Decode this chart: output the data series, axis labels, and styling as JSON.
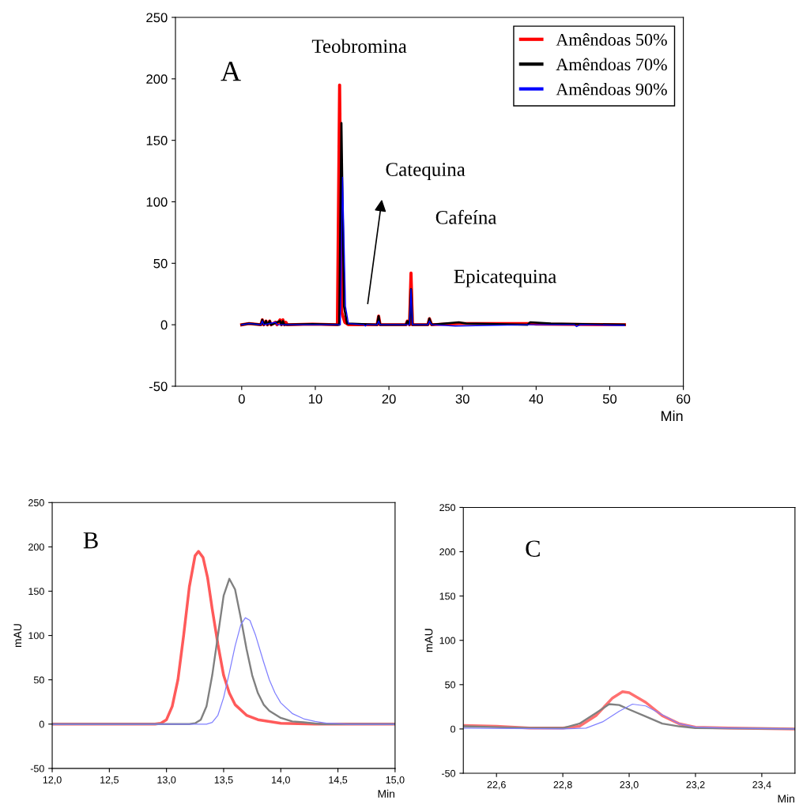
{
  "chart_data": [
    {
      "type": "line",
      "xlabel": "Min",
      "xlim": [
        -9,
        60
      ],
      "xticks": [
        0,
        10,
        20,
        30,
        40,
        50,
        60
      ],
      "ylim": [
        -50,
        250
      ],
      "yticks": [
        -50,
        0,
        50,
        100,
        150,
        200,
        250
      ],
      "grid": false,
      "legend": "top right",
      "marker": "none",
      "line_style": "solid",
      "annotations": [
        "A",
        "Teobromina",
        "Catequina",
        "Cafeína",
        "Epicatequina"
      ],
      "series": [
        {
          "name": "Amêndoas 50%",
          "color": "#ff0000",
          "x": [
            0,
            1,
            2.6,
            2.8,
            3.0,
            3.3,
            3.5,
            3.8,
            4.0,
            4.6,
            4.8,
            5.2,
            5.4,
            5.6,
            5.8,
            6.0,
            6.2,
            9.6,
            13.0,
            13.3,
            13.6,
            14.0,
            14.5,
            18.4,
            18.6,
            18.8,
            22.3,
            22.5,
            22.8,
            23.0,
            23.2,
            25.3,
            25.5,
            25.8,
            29.5,
            30.5,
            39,
            40,
            52
          ],
          "values": [
            0,
            1,
            0,
            4,
            0,
            3,
            0,
            3,
            0,
            2,
            0,
            4,
            0,
            4,
            0,
            2,
            0,
            0.5,
            0,
            195,
            10,
            2,
            0,
            0,
            7,
            0,
            0,
            3,
            0,
            42,
            0,
            0,
            5,
            0,
            1,
            1,
            1,
            0.5,
            0
          ]
        },
        {
          "name": "Amêndoas 70%",
          "color": "#000000",
          "x": [
            0,
            1,
            2.6,
            2.8,
            3.0,
            3.3,
            3.5,
            3.8,
            4.0,
            5.2,
            5.4,
            5.6,
            5.8,
            9.6,
            13.25,
            13.55,
            13.9,
            14.3,
            18.4,
            18.6,
            18.8,
            22.3,
            22.5,
            22.8,
            23.0,
            23.2,
            25.3,
            25.5,
            25.8,
            29.5,
            30.5,
            38.8,
            39.2,
            42,
            52
          ],
          "values": [
            0,
            1,
            0,
            4,
            0,
            3,
            0,
            3,
            0,
            3,
            0,
            3,
            0,
            0.5,
            0,
            164,
            15,
            1,
            0,
            7,
            0,
            0,
            3,
            0,
            29,
            0,
            0,
            5,
            0,
            2,
            1,
            0,
            2,
            1,
            0
          ]
        },
        {
          "name": "Amêndoas 90%",
          "color": "#0000ff",
          "x": [
            0,
            1,
            2.6,
            2.8,
            3.0,
            4.6,
            4.8,
            13.4,
            13.7,
            14.1,
            14.5,
            16.6,
            16.8,
            17.0,
            18.4,
            18.6,
            18.8,
            22.8,
            23.0,
            23.2,
            25.3,
            25.5,
            25.8,
            29.0,
            39,
            45.2,
            45.5,
            46,
            52
          ],
          "values": [
            0,
            1,
            0,
            3,
            0,
            2,
            0,
            0,
            120,
            15,
            1,
            0,
            -1,
            0,
            0,
            3,
            0,
            0,
            29,
            0,
            0,
            3,
            0,
            -1,
            0,
            0,
            -1.5,
            0,
            -0.5
          ]
        }
      ]
    },
    {
      "type": "line",
      "xlabel": "Min",
      "ylabel": "mAU",
      "xlim": [
        12,
        15
      ],
      "xticks": [
        {
          "value": 12,
          "label": "12,0"
        },
        {
          "value": 12.5,
          "label": "12,5"
        },
        {
          "value": 13,
          "label": "13,0"
        },
        {
          "value": 13.5,
          "label": "13,5"
        },
        {
          "value": 14,
          "label": "14,0"
        },
        {
          "value": 14.5,
          "label": "14,5"
        },
        {
          "value": 15,
          "label": "15,0"
        }
      ],
      "ylim": [
        -50,
        250
      ],
      "yticks": [
        -50,
        0,
        50,
        100,
        150,
        200,
        250
      ],
      "grid": false,
      "legend": false,
      "marker": "none",
      "line_style": "solid",
      "annotations": [
        "B"
      ],
      "series": [
        {
          "color": "#ff5a5a",
          "x": [
            12,
            12.9,
            12.95,
            13.0,
            13.05,
            13.1,
            13.15,
            13.2,
            13.25,
            13.28,
            13.32,
            13.36,
            13.4,
            13.45,
            13.5,
            13.55,
            13.6,
            13.7,
            13.8,
            13.9,
            14.0,
            14.3,
            15
          ],
          "values": [
            0,
            0,
            1,
            5,
            20,
            50,
            100,
            155,
            190,
            195,
            188,
            165,
            130,
            90,
            55,
            35,
            22,
            10,
            5,
            3,
            1,
            0,
            0
          ]
        },
        {
          "color": "#808080",
          "x": [
            12,
            13.2,
            13.25,
            13.3,
            13.35,
            13.4,
            13.45,
            13.5,
            13.55,
            13.6,
            13.65,
            13.7,
            13.75,
            13.8,
            13.85,
            13.9,
            14.0,
            14.1,
            14.2,
            14.35,
            15
          ],
          "values": [
            0,
            0,
            1,
            5,
            20,
            55,
            100,
            145,
            164,
            152,
            120,
            85,
            55,
            35,
            22,
            15,
            7,
            3,
            2,
            0,
            0
          ]
        },
        {
          "color": "#8080ff",
          "x": [
            12,
            13.35,
            13.4,
            13.45,
            13.5,
            13.55,
            13.6,
            13.65,
            13.69,
            13.73,
            13.78,
            13.85,
            13.9,
            13.95,
            14.0,
            14.1,
            14.2,
            14.3,
            14.4,
            14.6,
            15
          ],
          "values": [
            0,
            0,
            2,
            10,
            30,
            58,
            88,
            112,
            120,
            117,
            100,
            70,
            50,
            35,
            24,
            12,
            6,
            3,
            1,
            0,
            0
          ]
        }
      ]
    },
    {
      "type": "line",
      "xlabel": "Min",
      "ylabel": "mAU",
      "xlim": [
        22.5,
        23.5
      ],
      "xticks": [
        {
          "value": 22.6,
          "label": "22,6"
        },
        {
          "value": 22.8,
          "label": "22,8"
        },
        {
          "value": 23.0,
          "label": "23,0"
        },
        {
          "value": 23.2,
          "label": "23,2"
        },
        {
          "value": 23.4,
          "label": "23,4"
        }
      ],
      "ylim": [
        -50,
        250
      ],
      "yticks": [
        -50,
        0,
        50,
        100,
        150,
        200,
        250
      ],
      "grid": false,
      "legend": false,
      "marker": "none",
      "line_style": "solid",
      "annotations": [
        "C"
      ],
      "series": [
        {
          "color": "#ff7070",
          "x": [
            22.5,
            22.6,
            22.7,
            22.8,
            22.85,
            22.9,
            22.95,
            22.98,
            23.0,
            23.05,
            23.1,
            23.15,
            23.2,
            23.3,
            23.5
          ],
          "values": [
            4,
            3,
            1,
            1,
            3,
            15,
            35,
            42,
            41,
            30,
            15,
            6,
            2,
            1,
            0
          ]
        },
        {
          "color": "#808080",
          "x": [
            22.5,
            22.6,
            22.7,
            22.8,
            22.85,
            22.9,
            22.94,
            22.97,
            23.0,
            23.05,
            23.1,
            23.15,
            23.2,
            23.5
          ],
          "values": [
            3,
            2,
            1,
            1,
            6,
            18,
            28,
            27,
            22,
            14,
            6,
            3,
            1,
            0
          ]
        },
        {
          "color": "#8080ff",
          "x": [
            22.5,
            22.8,
            22.87,
            22.92,
            22.97,
            23.01,
            23.05,
            23.1,
            23.15,
            23.2,
            23.3,
            23.5
          ],
          "values": [
            1,
            0,
            1,
            8,
            20,
            28,
            26,
            16,
            6,
            2,
            1,
            0
          ]
        }
      ]
    }
  ]
}
